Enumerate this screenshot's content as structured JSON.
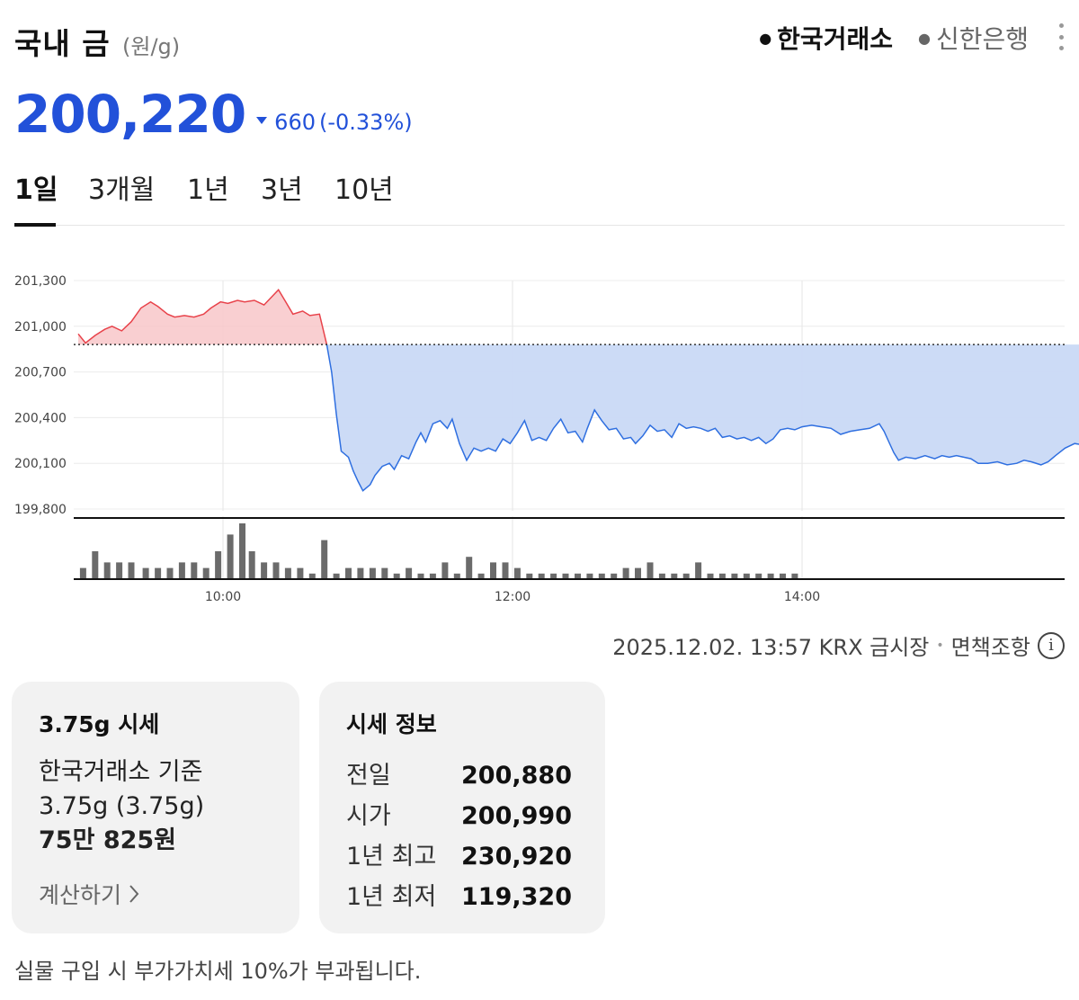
{
  "header": {
    "title": "국내 금",
    "unit": "(원/g)",
    "sources": [
      {
        "label": "한국거래소",
        "active": true
      },
      {
        "label": "신한은행",
        "active": false
      }
    ]
  },
  "price": {
    "value": "200,220",
    "change": "660",
    "change_pct": "(-0.33%)",
    "direction": "down",
    "color": "#2251d9"
  },
  "tabs": [
    "1일",
    "3개월",
    "1년",
    "3년",
    "10년"
  ],
  "active_tab": "1일",
  "chart_data": {
    "type": "area",
    "y_tick_labels": [
      "201,300",
      "201,000",
      "200,700",
      "200,400",
      "200,100",
      "199,800"
    ],
    "ylim": [
      199800,
      201300
    ],
    "x_tick_labels": [
      "10:00",
      "12:00",
      "14:00"
    ],
    "x_range": [
      "09:00",
      "15:45"
    ],
    "reference_value": 200880,
    "up_color": "#e8434b",
    "down_color": "#2f6fe0",
    "grid": true,
    "series": [
      {
        "points": [
          [
            "09:00",
            200950
          ],
          [
            "09:03",
            200890
          ],
          [
            "09:07",
            200940
          ],
          [
            "09:11",
            200980
          ],
          [
            "09:14",
            201000
          ],
          [
            "09:18",
            200970
          ],
          [
            "09:22",
            201030
          ],
          [
            "09:26",
            201120
          ],
          [
            "09:30",
            201160
          ],
          [
            "09:33",
            201130
          ],
          [
            "09:37",
            201080
          ],
          [
            "09:40",
            201060
          ],
          [
            "09:44",
            201070
          ],
          [
            "09:48",
            201060
          ],
          [
            "09:52",
            201080
          ],
          [
            "09:55",
            201120
          ],
          [
            "09:59",
            201160
          ],
          [
            "10:02",
            201150
          ],
          [
            "10:06",
            201170
          ],
          [
            "10:09",
            201160
          ],
          [
            "10:13",
            201170
          ],
          [
            "10:17",
            201140
          ],
          [
            "10:20",
            201190
          ],
          [
            "10:23",
            201240
          ],
          [
            "10:26",
            201160
          ],
          [
            "10:29",
            201080
          ],
          [
            "10:33",
            201100
          ],
          [
            "10:36",
            201070
          ],
          [
            "10:40",
            201080
          ],
          [
            "10:43",
            200880
          ],
          [
            "10:45",
            200700
          ],
          [
            "10:47",
            200420
          ],
          [
            "10:49",
            200180
          ],
          [
            "10:52",
            200140
          ],
          [
            "10:54",
            200050
          ],
          [
            "10:56",
            199980
          ],
          [
            "10:58",
            199920
          ],
          [
            "11:01",
            199960
          ],
          [
            "11:03",
            200020
          ],
          [
            "11:06",
            200080
          ],
          [
            "11:09",
            200100
          ],
          [
            "11:11",
            200060
          ],
          [
            "11:14",
            200150
          ],
          [
            "11:17",
            200130
          ],
          [
            "11:20",
            200240
          ],
          [
            "11:22",
            200300
          ],
          [
            "11:24",
            200240
          ],
          [
            "11:27",
            200360
          ],
          [
            "11:30",
            200380
          ],
          [
            "11:33",
            200330
          ],
          [
            "11:35",
            200390
          ],
          [
            "11:38",
            200230
          ],
          [
            "11:41",
            200120
          ],
          [
            "11:44",
            200200
          ],
          [
            "11:47",
            200180
          ],
          [
            "11:50",
            200200
          ],
          [
            "11:53",
            200180
          ],
          [
            "11:56",
            200260
          ],
          [
            "11:59",
            200230
          ],
          [
            "12:02",
            200300
          ],
          [
            "12:05",
            200380
          ],
          [
            "12:08",
            200250
          ],
          [
            "12:11",
            200270
          ],
          [
            "12:14",
            200250
          ],
          [
            "12:17",
            200330
          ],
          [
            "12:20",
            200390
          ],
          [
            "12:23",
            200300
          ],
          [
            "12:26",
            200310
          ],
          [
            "12:29",
            200240
          ],
          [
            "12:31",
            200330
          ],
          [
            "12:34",
            200450
          ],
          [
            "12:37",
            200380
          ],
          [
            "12:40",
            200320
          ],
          [
            "12:43",
            200330
          ],
          [
            "12:46",
            200260
          ],
          [
            "12:49",
            200270
          ],
          [
            "12:51",
            200230
          ],
          [
            "12:54",
            200280
          ],
          [
            "12:57",
            200350
          ],
          [
            "13:00",
            200310
          ],
          [
            "13:03",
            200320
          ],
          [
            "13:06",
            200270
          ],
          [
            "13:09",
            200360
          ],
          [
            "13:12",
            200330
          ],
          [
            "13:15",
            200340
          ],
          [
            "13:18",
            200330
          ],
          [
            "13:21",
            200310
          ],
          [
            "13:24",
            200330
          ],
          [
            "13:27",
            200270
          ],
          [
            "13:30",
            200280
          ],
          [
            "13:33",
            200260
          ],
          [
            "13:36",
            200270
          ],
          [
            "13:39",
            200250
          ],
          [
            "13:42",
            200270
          ],
          [
            "13:45",
            200230
          ],
          [
            "13:48",
            200260
          ],
          [
            "13:51",
            200320
          ],
          [
            "13:54",
            200330
          ],
          [
            "13:57",
            200320
          ],
          [
            "14:00",
            200340
          ],
          [
            "14:04",
            200350
          ],
          [
            "14:08",
            200340
          ],
          [
            "14:12",
            200330
          ],
          [
            "14:16",
            200290
          ],
          [
            "14:20",
            200310
          ],
          [
            "14:24",
            200320
          ],
          [
            "14:28",
            200330
          ],
          [
            "14:32",
            200360
          ],
          [
            "14:34",
            200310
          ],
          [
            "14:36",
            200240
          ],
          [
            "14:38",
            200170
          ],
          [
            "14:40",
            200120
          ],
          [
            "14:43",
            200140
          ],
          [
            "14:47",
            200130
          ],
          [
            "14:51",
            200150
          ],
          [
            "14:55",
            200130
          ],
          [
            "14:58",
            200150
          ],
          [
            "15:01",
            200140
          ],
          [
            "15:04",
            200150
          ],
          [
            "15:07",
            200140
          ],
          [
            "15:10",
            200130
          ],
          [
            "15:13",
            200100
          ],
          [
            "15:17",
            200100
          ],
          [
            "15:21",
            200110
          ],
          [
            "15:25",
            200090
          ],
          [
            "15:29",
            200100
          ],
          [
            "15:32",
            200120
          ],
          [
            "15:35",
            200110
          ],
          [
            "15:39",
            200090
          ],
          [
            "15:42",
            200110
          ],
          [
            "15:45",
            200150
          ],
          [
            "15:49",
            200200
          ],
          [
            "15:53",
            200230
          ],
          [
            "15:57",
            200220
          ]
        ]
      },
      {
        "name": "volume",
        "points": [
          [
            "09:02",
            2
          ],
          [
            "09:07",
            5
          ],
          [
            "09:12",
            3
          ],
          [
            "09:17",
            3
          ],
          [
            "09:22",
            3
          ],
          [
            "09:28",
            2
          ],
          [
            "09:33",
            2
          ],
          [
            "09:38",
            2
          ],
          [
            "09:43",
            3
          ],
          [
            "09:48",
            3
          ],
          [
            "09:53",
            2
          ],
          [
            "09:58",
            5
          ],
          [
            "10:03",
            8
          ],
          [
            "10:08",
            10
          ],
          [
            "10:12",
            5
          ],
          [
            "10:17",
            3
          ],
          [
            "10:22",
            3
          ],
          [
            "10:27",
            2
          ],
          [
            "10:32",
            2
          ],
          [
            "10:37",
            1
          ],
          [
            "10:42",
            7
          ],
          [
            "10:47",
            1
          ],
          [
            "10:52",
            2
          ],
          [
            "10:57",
            2
          ],
          [
            "11:02",
            2
          ],
          [
            "11:07",
            2
          ],
          [
            "11:12",
            1
          ],
          [
            "11:17",
            2
          ],
          [
            "11:22",
            1
          ],
          [
            "11:27",
            1
          ],
          [
            "11:32",
            3
          ],
          [
            "11:37",
            1
          ],
          [
            "11:42",
            4
          ],
          [
            "11:47",
            1
          ],
          [
            "11:52",
            3
          ],
          [
            "11:57",
            3
          ],
          [
            "12:02",
            2
          ],
          [
            "12:07",
            1
          ],
          [
            "12:12",
            1
          ],
          [
            "12:17",
            1
          ],
          [
            "12:22",
            1
          ],
          [
            "12:27",
            1
          ],
          [
            "12:32",
            1
          ],
          [
            "12:37",
            1
          ],
          [
            "12:42",
            1
          ],
          [
            "12:47",
            2
          ],
          [
            "12:52",
            2
          ],
          [
            "12:57",
            3
          ],
          [
            "13:02",
            1
          ],
          [
            "13:07",
            1
          ],
          [
            "13:12",
            1
          ],
          [
            "13:17",
            3
          ],
          [
            "13:22",
            1
          ],
          [
            "13:27",
            1
          ],
          [
            "13:32",
            1
          ],
          [
            "13:37",
            1
          ],
          [
            "13:42",
            1
          ],
          [
            "13:47",
            1
          ],
          [
            "13:52",
            1
          ],
          [
            "13:57",
            1
          ]
        ]
      }
    ]
  },
  "timestamp": {
    "text": "2025.12.02. 13:57 KRX 금시장",
    "disclaimer": "면책조항",
    "info_icon": "ⓘ"
  },
  "card_375": {
    "title": "3.75g 시세",
    "basis": "한국거래소 기준",
    "weight": "3.75g (3.75g)",
    "amount": "75만 825원",
    "calc_label": "계산하기",
    "calc_icon": "chevron-right-icon"
  },
  "card_info": {
    "title": "시세 정보",
    "rows": [
      {
        "label": "전일",
        "value": "200,880"
      },
      {
        "label": "시가",
        "value": "200,990"
      },
      {
        "label": "1년 최고",
        "value": "230,920"
      },
      {
        "label": "1년 최저",
        "value": "119,320"
      }
    ]
  },
  "footnote": "실물 구입 시 부가가치세 10%가 부과됩니다."
}
